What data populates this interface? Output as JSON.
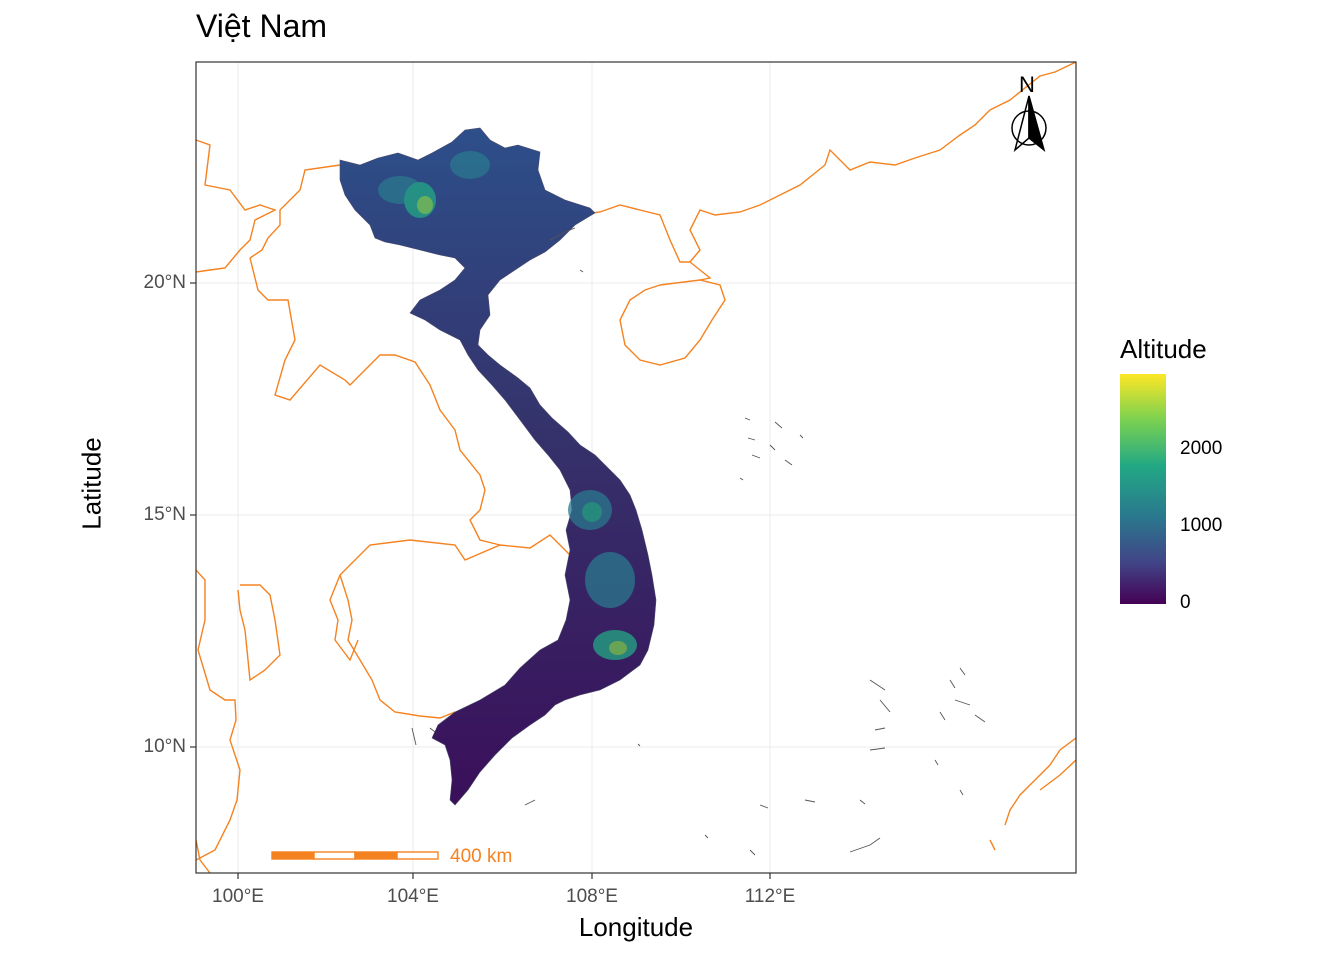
{
  "title": "Việt Nam",
  "x_axis": {
    "label": "Longitude",
    "ticks": [
      "100°E",
      "104°E",
      "108°E",
      "112°E"
    ]
  },
  "y_axis": {
    "label": "Latitude",
    "ticks": [
      "20°N",
      "15°N",
      "10°N"
    ]
  },
  "legend": {
    "title": "Altitude",
    "labels": [
      "2000",
      "1000",
      "0"
    ],
    "palette": [
      "#440154",
      "#414487",
      "#2a788e",
      "#22a884",
      "#7ad151",
      "#fde725"
    ]
  },
  "north_arrow": {
    "label": "N"
  },
  "scale_bar": {
    "label": "400 km",
    "color": "#f58220"
  },
  "colors": {
    "coastline": "#f58220",
    "panel_border": "#333333",
    "grid": "#ebebeb",
    "islands": "#555555"
  }
}
